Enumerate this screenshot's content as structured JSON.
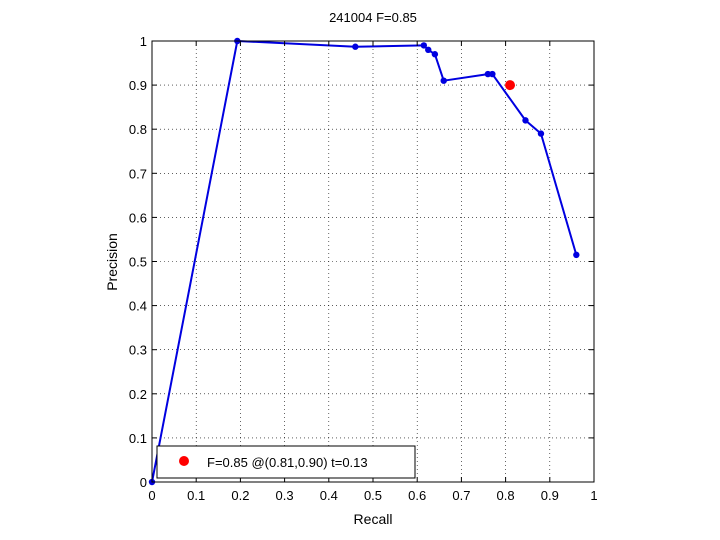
{
  "chart_data": {
    "type": "line",
    "title": "241004 F=0.85",
    "xlabel": "Recall",
    "ylabel": "Precision",
    "xlim": [
      0,
      1
    ],
    "ylim": [
      0,
      1
    ],
    "xticks": [
      0,
      0.1,
      0.2,
      0.3,
      0.4,
      0.5,
      0.6,
      0.7,
      0.8,
      0.9,
      1
    ],
    "yticks": [
      0,
      0.1,
      0.2,
      0.3,
      0.4,
      0.5,
      0.6,
      0.7,
      0.8,
      0.9,
      1
    ],
    "xtick_labels": [
      "0",
      "0.1",
      "0.2",
      "0.3",
      "0.4",
      "0.5",
      "0.6",
      "0.7",
      "0.8",
      "0.9",
      "1"
    ],
    "ytick_labels": [
      "0",
      "0.1",
      "0.2",
      "0.3",
      "0.4",
      "0.5",
      "0.6",
      "0.7",
      "0.8",
      "0.9",
      "1"
    ],
    "grid": true,
    "series": [
      {
        "color": "#0000e0",
        "x": [
          0.0,
          0.193,
          0.46,
          0.615,
          0.625,
          0.64,
          0.66,
          0.76,
          0.77,
          0.845,
          0.88,
          0.96
        ],
        "y": [
          0.0,
          1.0,
          0.987,
          0.99,
          0.98,
          0.97,
          0.91,
          0.925,
          0.925,
          0.82,
          0.79,
          0.515
        ]
      }
    ],
    "highlight": {
      "x": 0.81,
      "y": 0.9,
      "color": "#ff0000"
    },
    "legend": {
      "position": "bottom-left",
      "label": "F=0.85 @(0.81,0.90) t=0.13"
    }
  }
}
